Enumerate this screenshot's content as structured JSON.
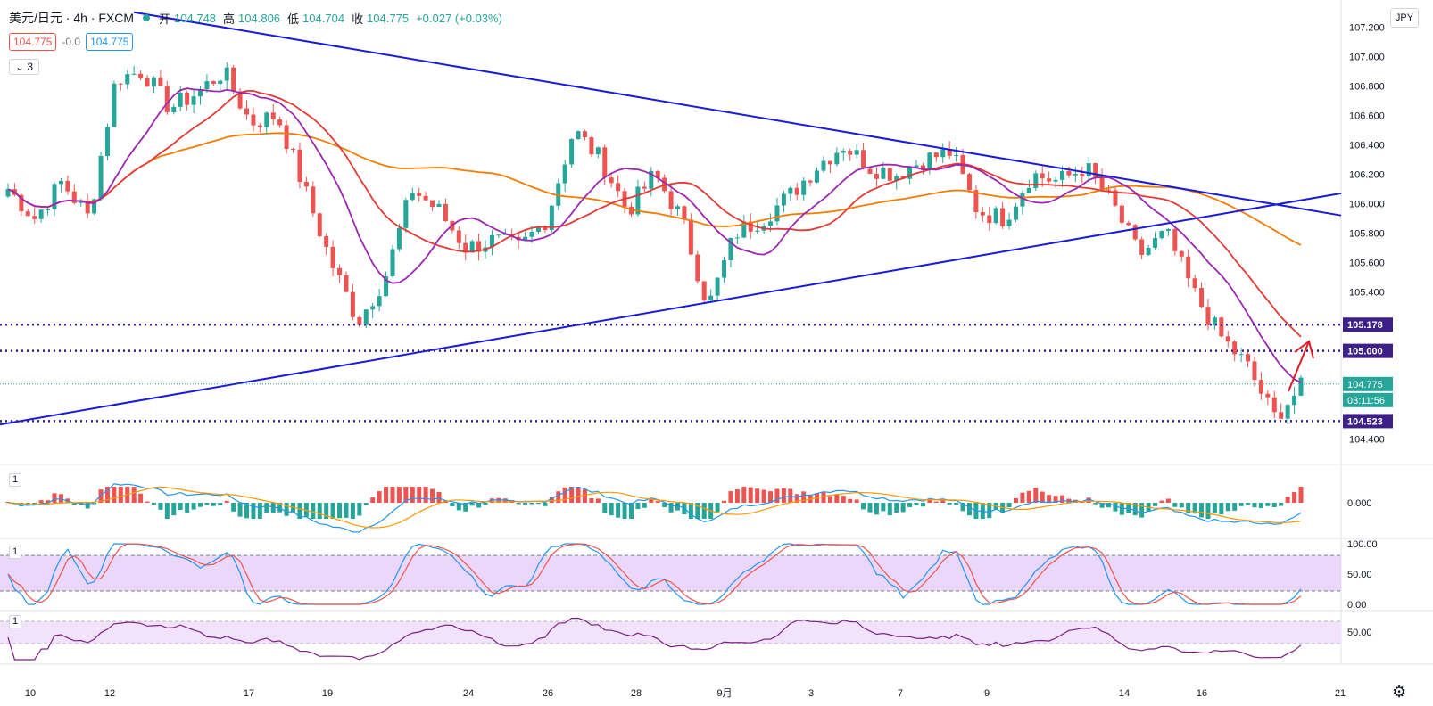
{
  "header": {
    "symbol": "美元/日元 · 4h · FXCM",
    "open_label": "开",
    "open": "104.748",
    "high_label": "高",
    "high": "104.806",
    "low_label": "低",
    "low": "104.704",
    "close_label": "收",
    "close": "104.775",
    "change": "+0.027 (+0.03%)",
    "bid": "104.775",
    "spread": "-0.0",
    "ask": "104.775",
    "indicator_count": "3",
    "currency": "JPY"
  },
  "panes": {
    "macd_label": "1",
    "stoch_label": "1",
    "rsi_label": "1"
  },
  "chart_data": {
    "type": "candlestick",
    "symbol": "USDJPY",
    "interval": "4h",
    "ylim": [
      104.35,
      107.25
    ],
    "y_ticks": [
      "107.200",
      "107.000",
      "106.800",
      "106.600",
      "106.400",
      "106.200",
      "106.000",
      "105.800",
      "105.600",
      "105.400",
      "104.400"
    ],
    "x_ticks": [
      "10",
      "12",
      "17",
      "19",
      "24",
      "26",
      "28",
      "9月",
      "3",
      "7",
      "9",
      "14",
      "16",
      "21"
    ],
    "horizontal_levels": [
      "105.178",
      "105.000",
      "104.523"
    ],
    "last_price": "104.775",
    "countdown": "03:11:56",
    "trendlines": [
      {
        "name": "upper",
        "from": [
          "Aug 10",
          107.3
        ],
        "to": [
          "Sep 21",
          105.92
        ]
      },
      {
        "name": "lower",
        "from": [
          "Aug 10",
          104.5
        ],
        "to": [
          "Sep 21",
          106.07
        ]
      }
    ],
    "colors": {
      "up": "#26a69a",
      "down": "#ef5350",
      "trendline": "#1a1adb",
      "level": "#3c1f87",
      "arrow": "#e01b24",
      "ma_orange": "#f57c00",
      "ma_red": "#e53935",
      "ma_purple": "#9c27b0"
    },
    "candles_knots": [
      [
        105.6,
        106.1
      ],
      [
        106.0,
        105.9
      ],
      [
        105.75,
        106.15
      ],
      [
        105.95,
        105.9
      ],
      [
        106.05,
        106.85
      ],
      [
        106.75,
        106.9
      ],
      [
        106.75,
        106.65
      ],
      [
        106.55,
        106.75
      ],
      [
        106.75,
        106.9
      ],
      [
        106.8,
        106.55
      ],
      [
        106.45,
        106.6
      ],
      [
        106.35,
        106.1
      ],
      [
        105.75,
        105.6
      ],
      [
        105.35,
        105.2
      ],
      [
        105.2,
        105.5
      ],
      [
        105.6,
        106.1
      ],
      [
        106.15,
        105.95
      ],
      [
        105.8,
        105.7
      ],
      [
        105.5,
        105.75
      ],
      [
        105.75,
        105.7
      ],
      [
        105.75,
        105.9
      ],
      [
        106.05,
        106.5
      ],
      [
        106.4,
        106.3
      ],
      [
        106.1,
        105.95
      ],
      [
        105.85,
        106.2
      ],
      [
        106.7,
        105.9
      ],
      [
        105.8,
        105.3
      ],
      [
        105.45,
        105.8
      ],
      [
        105.8,
        105.9
      ],
      [
        105.8,
        106.05
      ],
      [
        106.1,
        106.25
      ],
      [
        106.3,
        106.4
      ],
      [
        106.25,
        106.25
      ],
      [
        106.45,
        106.2
      ],
      [
        106.15,
        106.3
      ],
      [
        106.3,
        106.35
      ],
      [
        106.2,
        105.95
      ],
      [
        105.95,
        105.9
      ],
      [
        106.15,
        106.2
      ],
      [
        106.1,
        106.15
      ],
      [
        106.2,
        106.25
      ],
      [
        106.1,
        106.0
      ],
      [
        105.8,
        105.65
      ],
      [
        105.7,
        105.8
      ],
      [
        105.45,
        105.4
      ],
      [
        105.3,
        105.1
      ],
      [
        104.95,
        104.9
      ],
      [
        104.8,
        104.55
      ],
      [
        104.65,
        104.75
      ]
    ]
  }
}
